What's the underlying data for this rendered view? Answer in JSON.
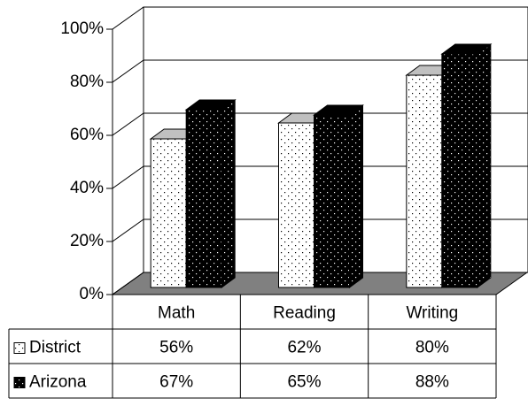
{
  "chart_data": {
    "type": "bar3d",
    "categories": [
      "Math",
      "Reading",
      "Writing"
    ],
    "series": [
      {
        "name": "District",
        "color": "#ffffff",
        "values": [
          56,
          62,
          80
        ],
        "value_labels": [
          "56%",
          "62%",
          "80%"
        ]
      },
      {
        "name": "Arizona",
        "color": "#000000",
        "values": [
          67,
          65,
          88
        ],
        "value_labels": [
          "67%",
          "65%",
          "88%"
        ]
      }
    ],
    "ylim": [
      0,
      100
    ],
    "yticks": [
      {
        "value": 0,
        "label": "0%"
      },
      {
        "value": 20,
        "label": "20%"
      },
      {
        "value": 40,
        "label": "40%"
      },
      {
        "value": 60,
        "label": "60%"
      },
      {
        "value": 80,
        "label": "80%"
      },
      {
        "value": 100,
        "label": "100%"
      }
    ],
    "grid": true
  }
}
